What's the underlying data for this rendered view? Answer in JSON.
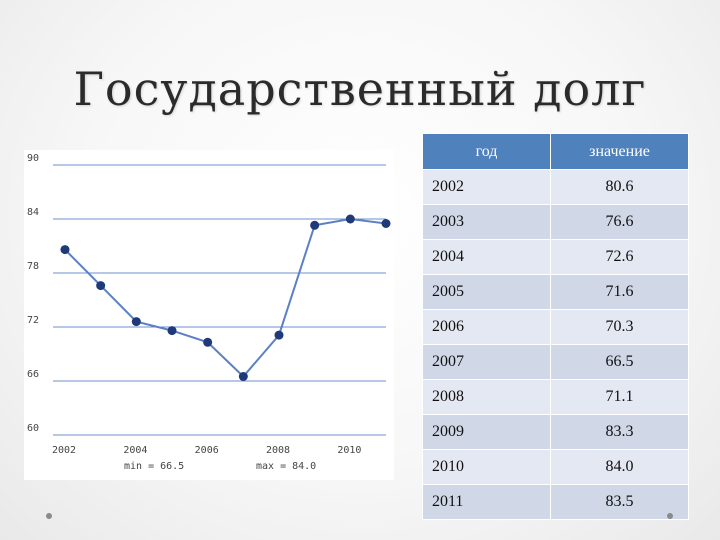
{
  "title": "Государственный долг",
  "table": {
    "headers": [
      "год",
      "значение"
    ],
    "rows": [
      {
        "year": "2002",
        "value": "80.6"
      },
      {
        "year": "2003",
        "value": "76.6"
      },
      {
        "year": "2004",
        "value": "72.6"
      },
      {
        "year": "2005",
        "value": "71.6"
      },
      {
        "year": "2006",
        "value": "70.3"
      },
      {
        "year": "2007",
        "value": "66.5"
      },
      {
        "year": "2008",
        "value": "71.1"
      },
      {
        "year": "2009",
        "value": "83.3"
      },
      {
        "year": "2010",
        "value": "84.0"
      },
      {
        "year": "2011",
        "value": "83.5"
      }
    ]
  },
  "chart_data": {
    "type": "line",
    "x": [
      2002,
      2003,
      2004,
      2005,
      2006,
      2007,
      2008,
      2009,
      2010,
      2011
    ],
    "series": [
      {
        "values": [
          80.6,
          76.6,
          72.6,
          71.6,
          70.3,
          66.5,
          71.1,
          83.3,
          84.0,
          83.5
        ]
      }
    ],
    "xticks": [
      2002,
      2004,
      2006,
      2008,
      2010
    ],
    "yticks": [
      60,
      66,
      72,
      78,
      84,
      90
    ],
    "xlim": [
      2002,
      2011
    ],
    "ylim": [
      60,
      90
    ],
    "grid": true,
    "min_label": "min = 66.5",
    "max_label": "max = 84.0",
    "line_color": "#5b80c4",
    "marker_color": "#1f3a78",
    "grid_color": "#6f8fd0"
  }
}
